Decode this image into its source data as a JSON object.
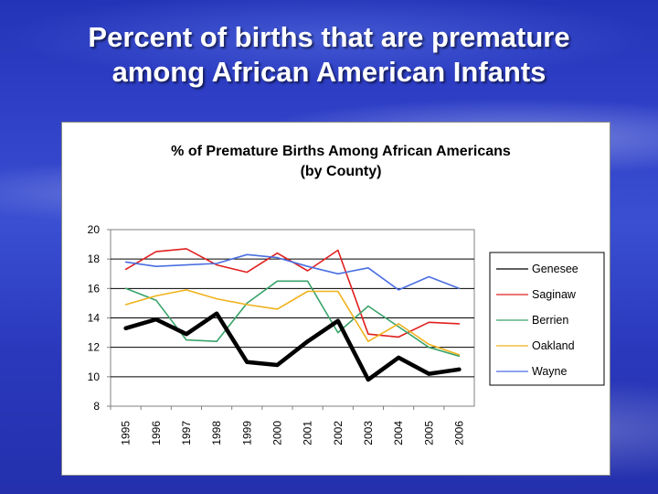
{
  "slide": {
    "title_line1": "Percent of births that are premature",
    "title_line2": "among African American Infants"
  },
  "chart_data": {
    "type": "line",
    "title_line1": "% of Premature Births Among African Americans",
    "title_line2": "(by County)",
    "xlabel": "",
    "ylabel": "",
    "ylim": [
      8,
      20
    ],
    "yticks": [
      "20",
      "18",
      "16",
      "14",
      "12",
      "10",
      "8"
    ],
    "grid": true,
    "legend": "right",
    "categories": [
      "1995",
      "1996",
      "1997",
      "1998",
      "1999",
      "2000",
      "2001",
      "2002",
      "2003",
      "2004",
      "2005",
      "2006"
    ],
    "series": [
      {
        "name": "Genesee",
        "color": "#000000",
        "width": 4.5,
        "values": [
          13.3,
          13.9,
          12.9,
          14.3,
          11.0,
          10.8,
          12.4,
          13.8,
          9.8,
          11.3,
          10.2,
          10.5
        ]
      },
      {
        "name": "Saginaw",
        "color": "#e02020",
        "width": 1.6,
        "values": [
          17.3,
          18.5,
          18.7,
          17.6,
          17.1,
          18.4,
          17.2,
          18.6,
          12.9,
          12.7,
          13.7,
          13.6
        ]
      },
      {
        "name": "Berrien",
        "color": "#3aa36a",
        "width": 1.6,
        "values": [
          16.0,
          15.2,
          12.5,
          12.4,
          15.0,
          16.5,
          16.5,
          13.0,
          14.8,
          13.4,
          12.0,
          11.4
        ]
      },
      {
        "name": "Oakland",
        "color": "#f0b21c",
        "width": 1.6,
        "values": [
          14.9,
          15.5,
          15.9,
          15.3,
          14.9,
          14.6,
          15.8,
          15.8,
          12.4,
          13.6,
          12.2,
          11.5
        ]
      },
      {
        "name": "Wayne",
        "color": "#4a6fe0",
        "width": 1.6,
        "values": [
          17.8,
          17.5,
          17.6,
          17.7,
          18.3,
          18.1,
          17.5,
          17.0,
          17.4,
          15.9,
          16.8,
          16.0
        ]
      }
    ]
  }
}
